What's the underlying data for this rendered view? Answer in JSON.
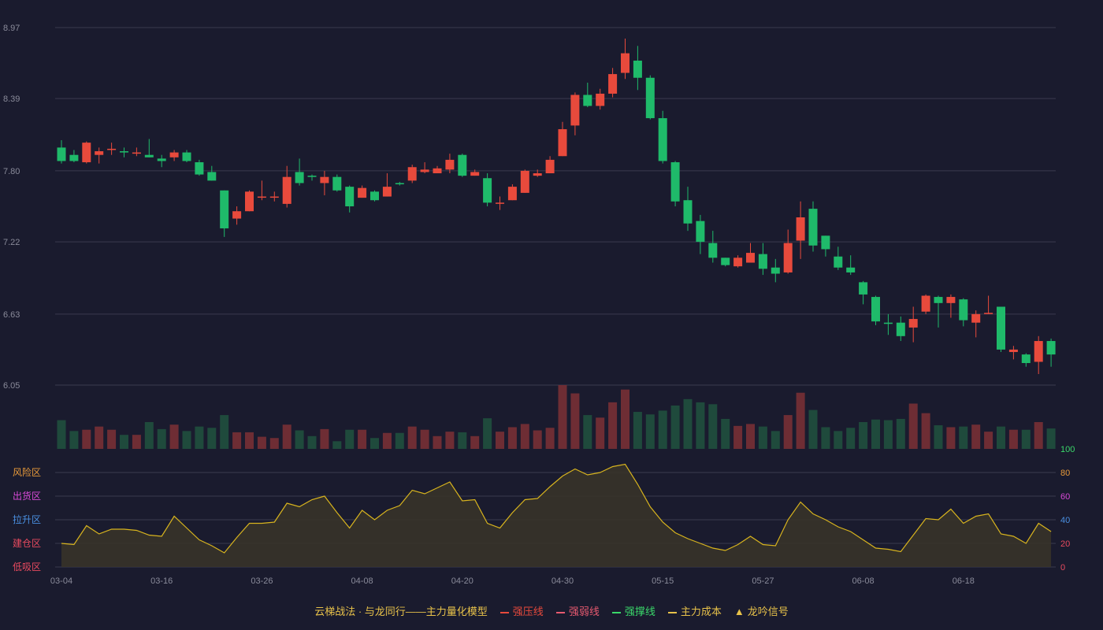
{
  "chart_data": {
    "type": "candlestick",
    "price_axis": {
      "ticks": [
        6.05,
        6.63,
        7.22,
        7.8,
        8.39,
        8.97
      ],
      "ylim": [
        6.05,
        8.97
      ]
    },
    "indicator_axis": {
      "ticks": [
        0,
        20,
        40,
        60,
        80,
        100
      ],
      "ylim": [
        0,
        100
      ],
      "tick_colors": [
        "#e84a5f",
        "#e84a5f",
        "#4a90e2",
        "#d84ad8",
        "#e89a3a",
        "#3ad86a"
      ],
      "zones": [
        {
          "label": "风险区",
          "value": 80,
          "color": "#e89a3a"
        },
        {
          "label": "出货区",
          "value": 60,
          "color": "#d84ad8"
        },
        {
          "label": "拉升区",
          "value": 40,
          "color": "#4a90e2"
        },
        {
          "label": "建仓区",
          "value": 20,
          "color": "#e84a5f"
        },
        {
          "label": "低吸区",
          "value": 0,
          "color": "#e84a5f"
        }
      ]
    },
    "x_ticks": [
      {
        "label": "03-04",
        "index": 0
      },
      {
        "label": "03-16",
        "index": 8
      },
      {
        "label": "03-26",
        "index": 16
      },
      {
        "label": "04-08",
        "index": 24
      },
      {
        "label": "04-20",
        "index": 32
      },
      {
        "label": "04-30",
        "index": 40
      },
      {
        "label": "05-15",
        "index": 48
      },
      {
        "label": "05-27",
        "index": 56
      },
      {
        "label": "06-08",
        "index": 64
      },
      {
        "label": "06-18",
        "index": 72
      }
    ],
    "candles": [
      [
        7.99,
        7.88,
        8.05,
        7.86
      ],
      [
        7.93,
        7.88,
        7.97,
        7.87
      ],
      [
        7.87,
        8.03,
        8.04,
        7.86
      ],
      [
        7.93,
        7.96,
        7.99,
        7.86
      ],
      [
        7.97,
        7.98,
        8.03,
        7.93
      ],
      [
        7.96,
        7.95,
        7.99,
        7.91
      ],
      [
        7.94,
        7.95,
        7.99,
        7.92
      ],
      [
        7.93,
        7.91,
        8.06,
        7.91
      ],
      [
        7.9,
        7.88,
        7.93,
        7.83
      ],
      [
        7.91,
        7.95,
        7.97,
        7.88
      ],
      [
        7.95,
        7.88,
        7.97,
        7.87
      ],
      [
        7.87,
        7.77,
        7.89,
        7.76
      ],
      [
        7.79,
        7.72,
        7.84,
        7.72
      ],
      [
        7.64,
        7.33,
        7.64,
        7.26
      ],
      [
        7.41,
        7.47,
        7.51,
        7.36
      ],
      [
        7.47,
        7.63,
        7.64,
        7.47
      ],
      [
        7.59,
        7.59,
        7.72,
        7.56
      ],
      [
        7.59,
        7.59,
        7.63,
        7.55
      ],
      [
        7.53,
        7.75,
        7.84,
        7.5
      ],
      [
        7.79,
        7.7,
        7.9,
        7.68
      ],
      [
        7.76,
        7.75,
        7.77,
        7.72
      ],
      [
        7.7,
        7.75,
        7.8,
        7.6
      ],
      [
        7.75,
        7.64,
        7.77,
        7.63
      ],
      [
        7.67,
        7.51,
        7.68,
        7.46
      ],
      [
        7.58,
        7.66,
        7.68,
        7.58
      ],
      [
        7.63,
        7.56,
        7.64,
        7.55
      ],
      [
        7.59,
        7.67,
        7.78,
        7.59
      ],
      [
        7.7,
        7.69,
        7.71,
        7.68
      ],
      [
        7.72,
        7.83,
        7.85,
        7.7
      ],
      [
        7.79,
        7.81,
        7.87,
        7.78
      ],
      [
        7.78,
        7.82,
        7.84,
        7.78
      ],
      [
        7.81,
        7.89,
        7.94,
        7.78
      ],
      [
        7.93,
        7.76,
        7.94,
        7.75
      ],
      [
        7.76,
        7.79,
        7.81,
        7.76
      ],
      [
        7.74,
        7.54,
        7.78,
        7.51
      ],
      [
        7.54,
        7.54,
        7.59,
        7.48
      ],
      [
        7.56,
        7.67,
        7.69,
        7.56
      ],
      [
        7.62,
        7.8,
        7.81,
        7.62
      ],
      [
        7.76,
        7.78,
        7.81,
        7.75
      ],
      [
        7.78,
        7.89,
        7.92,
        7.78
      ],
      [
        7.92,
        8.14,
        8.2,
        7.92
      ],
      [
        8.17,
        8.42,
        8.44,
        8.09
      ],
      [
        8.42,
        8.33,
        8.52,
        8.32
      ],
      [
        8.33,
        8.43,
        8.47,
        8.3
      ],
      [
        8.43,
        8.59,
        8.64,
        8.4
      ],
      [
        8.6,
        8.76,
        8.88,
        8.55
      ],
      [
        8.7,
        8.56,
        8.82,
        8.46
      ],
      [
        8.56,
        8.23,
        8.58,
        8.22
      ],
      [
        8.23,
        7.88,
        8.29,
        7.86
      ],
      [
        7.87,
        7.55,
        7.88,
        7.51
      ],
      [
        7.56,
        7.37,
        7.67,
        7.31
      ],
      [
        7.39,
        7.22,
        7.44,
        7.12
      ],
      [
        7.21,
        7.09,
        7.31,
        7.05
      ],
      [
        7.09,
        7.03,
        7.09,
        7.02
      ],
      [
        7.02,
        7.09,
        7.11,
        7.01
      ],
      [
        7.05,
        7.13,
        7.21,
        7.05
      ],
      [
        7.12,
        7.0,
        7.21,
        6.95
      ],
      [
        7.01,
        6.96,
        7.08,
        6.89
      ],
      [
        6.97,
        7.21,
        7.32,
        6.96
      ],
      [
        7.23,
        7.42,
        7.55,
        7.08
      ],
      [
        7.49,
        7.19,
        7.55,
        7.14
      ],
      [
        7.27,
        7.16,
        7.27,
        7.1
      ],
      [
        7.1,
        7.01,
        7.18,
        6.99
      ],
      [
        7.01,
        6.97,
        7.11,
        6.95
      ],
      [
        6.89,
        6.79,
        6.9,
        6.71
      ],
      [
        6.77,
        6.57,
        6.78,
        6.54
      ],
      [
        6.56,
        6.55,
        6.63,
        6.46
      ],
      [
        6.56,
        6.45,
        6.61,
        6.41
      ],
      [
        6.52,
        6.59,
        6.69,
        6.4
      ],
      [
        6.65,
        6.78,
        6.79,
        6.63
      ],
      [
        6.77,
        6.72,
        6.78,
        6.52
      ],
      [
        6.72,
        6.77,
        6.79,
        6.6
      ],
      [
        6.75,
        6.58,
        6.76,
        6.53
      ],
      [
        6.56,
        6.63,
        6.66,
        6.44
      ],
      [
        6.63,
        6.64,
        6.78,
        6.63
      ],
      [
        6.69,
        6.34,
        6.69,
        6.32
      ],
      [
        6.32,
        6.34,
        6.37,
        6.26
      ],
      [
        6.3,
        6.23,
        6.31,
        6.2
      ],
      [
        6.24,
        6.41,
        6.45,
        6.14
      ],
      [
        6.41,
        6.3,
        6.43,
        6.2
      ]
    ],
    "volume": [
      0.45,
      0.28,
      0.3,
      0.35,
      0.3,
      0.22,
      0.22,
      0.42,
      0.31,
      0.38,
      0.28,
      0.35,
      0.33,
      0.53,
      0.26,
      0.26,
      0.19,
      0.17,
      0.38,
      0.29,
      0.2,
      0.31,
      0.12,
      0.3,
      0.3,
      0.17,
      0.25,
      0.25,
      0.35,
      0.3,
      0.2,
      0.27,
      0.26,
      0.2,
      0.48,
      0.27,
      0.34,
      0.39,
      0.29,
      0.33,
      1.0,
      0.87,
      0.53,
      0.49,
      0.73,
      0.93,
      0.58,
      0.54,
      0.6,
      0.68,
      0.78,
      0.73,
      0.7,
      0.47,
      0.36,
      0.39,
      0.35,
      0.28,
      0.53,
      0.88,
      0.61,
      0.34,
      0.28,
      0.33,
      0.42,
      0.46,
      0.45,
      0.47,
      0.71,
      0.56,
      0.37,
      0.34,
      0.35,
      0.38,
      0.27,
      0.35,
      0.3,
      0.3,
      0.42,
      0.32
    ],
    "main_cost_line": [
      20,
      19,
      35,
      28,
      32,
      32,
      31,
      27,
      26,
      43,
      33,
      23,
      18,
      12,
      25,
      37,
      37,
      38,
      54,
      51,
      57,
      60,
      46,
      33,
      48,
      40,
      48,
      52,
      65,
      62,
      67,
      72,
      56,
      57,
      37,
      33,
      46,
      57,
      58,
      68,
      77,
      83,
      78,
      80,
      85,
      87,
      70,
      51,
      38,
      29,
      24,
      20,
      16,
      14,
      19,
      26,
      19,
      18,
      40,
      55,
      45,
      40,
      34,
      30,
      23,
      16,
      15,
      13,
      27,
      41,
      40,
      49,
      37,
      43,
      45,
      28,
      26,
      20,
      37,
      30
    ],
    "legend": [
      {
        "label": "云梯战法 · 与龙同行——主力量化模型",
        "type": "text",
        "color": "#e8c24a"
      },
      {
        "label": "强压线",
        "type": "line",
        "color": "#e84a3c",
        "dash": false
      },
      {
        "label": "强弱线",
        "type": "line",
        "color": "#e85a70",
        "dash": true
      },
      {
        "label": "强撑线",
        "type": "line",
        "color": "#3ad86a",
        "dash": false
      },
      {
        "label": "主力成本",
        "type": "line",
        "color": "#e8c24a",
        "dash": true
      },
      {
        "label": "龙吟信号",
        "type": "triangle",
        "color": "#e8c24a"
      }
    ],
    "colors": {
      "up": "#e84a3c",
      "down": "#1fba6a",
      "volume_up": "#6e2d34",
      "volume_down": "#1f4a3c",
      "cost_line": "#d8b41e",
      "cost_fill": "#3a3428",
      "grid": "#3a3b4e",
      "axis_text": "#8a8b9a"
    }
  }
}
